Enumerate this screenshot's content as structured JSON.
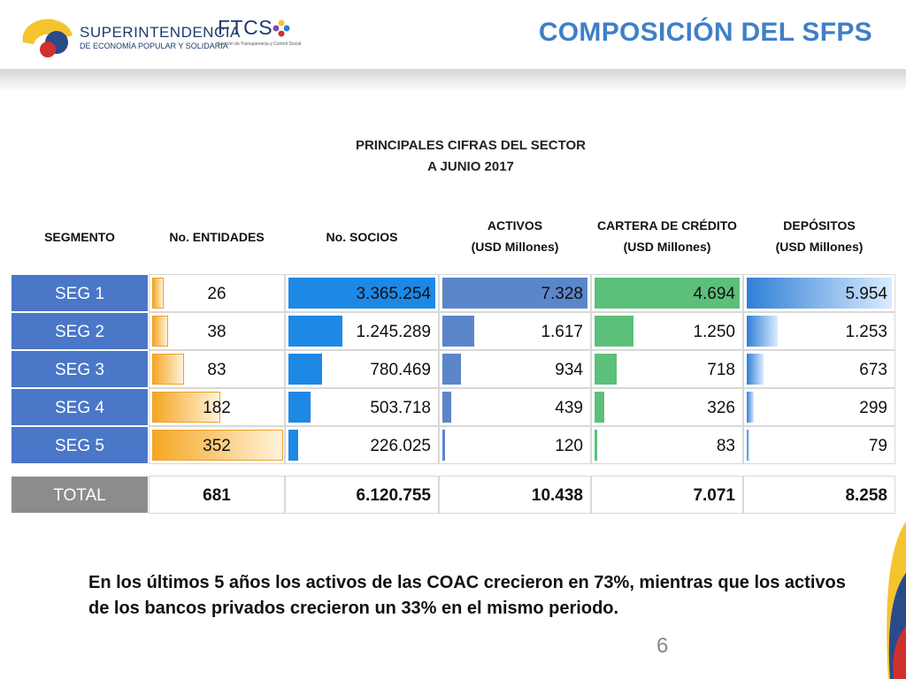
{
  "header": {
    "logo1_line1": "SUPERINTENDENCIA",
    "logo1_line2": "DE ECONOMÍA POPULAR Y SOLIDARIA",
    "logo2_text": "FTCS",
    "logo2_sub": "Función de Transparencia y Control Social",
    "title": "COMPOSICIÓN DEL SFPS"
  },
  "table_title": {
    "line1": "PRINCIPALES CIFRAS DEL SECTOR",
    "line2": "A JUNIO 2017"
  },
  "columns": {
    "segmento": "SEGMENTO",
    "entidades": "No. ENTIDADES",
    "socios": "No. SOCIOS",
    "activos_1": "ACTIVOS",
    "activos_2": "(USD Millones)",
    "cartera_1": "CARTERA DE CRÉDITO",
    "cartera_2": "(USD Millones)",
    "depositos_1": "DEPÓSITOS",
    "depositos_2": "(USD Millones)"
  },
  "rows": [
    {
      "segmento": "SEG 1",
      "entidades": "26",
      "socios": "3.365.254",
      "activos": "7.328",
      "cartera": "4.694",
      "depositos": "5.954"
    },
    {
      "segmento": "SEG 2",
      "entidades": "38",
      "socios": "1.245.289",
      "activos": "1.617",
      "cartera": "1.250",
      "depositos": "1.253"
    },
    {
      "segmento": "SEG 3",
      "entidades": "83",
      "socios": "780.469",
      "activos": "934",
      "cartera": "718",
      "depositos": "673"
    },
    {
      "segmento": "SEG 4",
      "entidades": "182",
      "socios": "503.718",
      "activos": "439",
      "cartera": "326",
      "depositos": "299"
    },
    {
      "segmento": "SEG 5",
      "entidades": "352",
      "socios": "226.025",
      "activos": "120",
      "cartera": "83",
      "depositos": "79"
    }
  ],
  "total": {
    "label": "TOTAL",
    "entidades": "681",
    "socios": "6.120.755",
    "activos": "10.438",
    "cartera": "7.071",
    "depositos": "8.258"
  },
  "chart_data": {
    "type": "table",
    "title": "PRINCIPALES CIFRAS DEL SECTOR A JUNIO 2017",
    "categories": [
      "SEG 1",
      "SEG 2",
      "SEG 3",
      "SEG 4",
      "SEG 5"
    ],
    "series": [
      {
        "name": "No. ENTIDADES",
        "values": [
          26,
          38,
          83,
          182,
          352
        ]
      },
      {
        "name": "No. SOCIOS",
        "values": [
          3365254,
          1245289,
          780469,
          503718,
          226025
        ]
      },
      {
        "name": "ACTIVOS (USD Millones)",
        "values": [
          7328,
          1617,
          934,
          439,
          120
        ]
      },
      {
        "name": "CARTERA DE CRÉDITO (USD Millones)",
        "values": [
          4694,
          1250,
          718,
          326,
          83
        ]
      },
      {
        "name": "DEPÓSITOS (USD Millones)",
        "values": [
          5954,
          1253,
          673,
          299,
          79
        ]
      }
    ],
    "totals": [
      681,
      6120755,
      10438,
      7071,
      8258
    ]
  },
  "colors": {
    "segment": "#4a77c7",
    "total": "#8c8c8c",
    "entidades_bar": "#f5a623",
    "socios_bar": "#1e88e5",
    "activos_bar": "#5b86c9",
    "cartera_bar": "#5cc07a",
    "depositos_bar": "#2f7fd6",
    "title": "#3f7fc8"
  },
  "note": "En los últimos 5 años los activos de las COAC crecieron en  73%, mientras que los activos de los bancos privados crecieron un  33% en el mismo periodo.",
  "page_number": "6"
}
